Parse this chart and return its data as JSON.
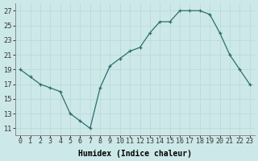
{
  "x": [
    0,
    1,
    2,
    3,
    4,
    5,
    6,
    7,
    8,
    9,
    10,
    11,
    12,
    13,
    14,
    15,
    16,
    17,
    18,
    19,
    20,
    21,
    22,
    23
  ],
  "y": [
    19,
    18,
    17,
    16.5,
    16,
    13,
    12,
    11,
    16.5,
    19.5,
    20.5,
    21.5,
    22,
    24,
    25.5,
    25.5,
    27,
    27,
    27,
    26.5,
    24,
    21,
    19,
    17
  ],
  "line_color": "#2d6e6e",
  "marker": "+",
  "bg_color": "#cde8e8",
  "grid_color": "#b8d8d8",
  "xlabel": "Humidex (Indice chaleur)",
  "xlim": [
    -0.5,
    23.5
  ],
  "ylim": [
    10,
    28
  ],
  "yticks": [
    11,
    13,
    15,
    17,
    19,
    21,
    23,
    25,
    27
  ],
  "xtick_labels": [
    "0",
    "1",
    "2",
    "3",
    "4",
    "5",
    "6",
    "7",
    "8",
    "9",
    "10",
    "11",
    "12",
    "13",
    "14",
    "15",
    "16",
    "17",
    "18",
    "19",
    "20",
    "21",
    "22",
    "23"
  ],
  "label_fontsize": 7,
  "tick_fontsize": 6
}
